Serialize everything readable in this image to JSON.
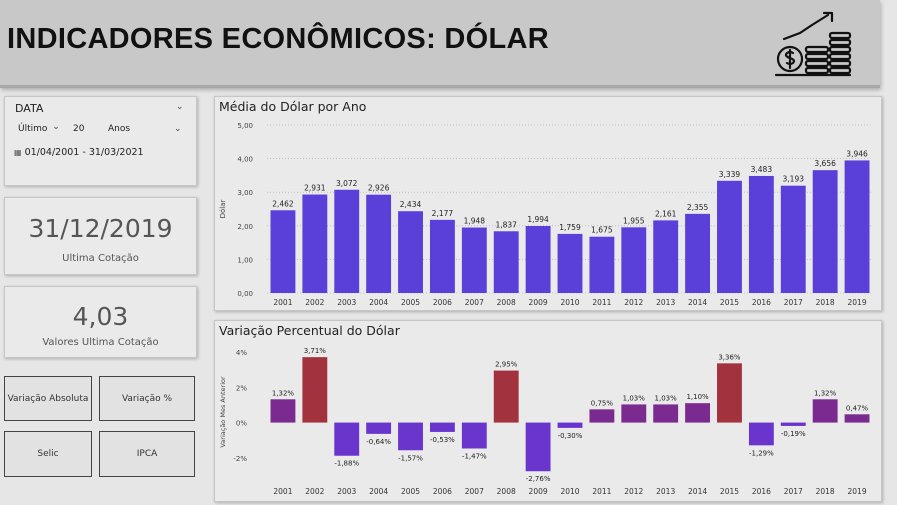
{
  "header": {
    "title": "INDICADORES ECONÔMICOS: DÓLAR",
    "icon": "money-growth-icon"
  },
  "slicer": {
    "title": "DATA",
    "mode": "Último",
    "count": "20",
    "unit": "Anos",
    "range": "01/04/2001 - 31/03/2021",
    "calendar_icon": "calendar-icon"
  },
  "kpi_date": {
    "value": "31/12/2019",
    "label": "Ultima Cotação"
  },
  "kpi_value": {
    "value": "4,03",
    "label": "Valores Ultima Cotação"
  },
  "buttons": {
    "var_abs": "Variação Absoluta",
    "var_pct": "Variação %",
    "selic": "Selic",
    "ipca": "IPCA"
  },
  "colors": {
    "bar": "#5b3fd9",
    "positive_high": "#a3323f",
    "positive": "#7b2a8f",
    "negative": "#6a35cc"
  },
  "chart_data": [
    {
      "type": "bar",
      "title": "Média do Dólar por Ano",
      "ylabel": "Dólar",
      "xlabel": "",
      "ylim": [
        0,
        5
      ],
      "yticks": [
        "0,00",
        "1,00",
        "2,00",
        "3,00",
        "4,00",
        "5,00"
      ],
      "grid": true,
      "categories": [
        "2001",
        "2002",
        "2003",
        "2004",
        "2005",
        "2006",
        "2007",
        "2008",
        "2009",
        "2010",
        "2011",
        "2012",
        "2013",
        "2014",
        "2015",
        "2016",
        "2017",
        "2018",
        "2019"
      ],
      "values": [
        2.462,
        2.931,
        3.072,
        2.926,
        2.434,
        2.177,
        1.948,
        1.837,
        1.994,
        1.759,
        1.675,
        1.955,
        2.161,
        2.355,
        3.339,
        3.483,
        3.193,
        3.656,
        3.946
      ],
      "labels": [
        "2,462",
        "2,931",
        "3,072",
        "2,926",
        "2,434",
        "2,177",
        "1,948",
        "1,837",
        "1,994",
        "1,759",
        "1,675",
        "1,955",
        "2,161",
        "2,355",
        "3,339",
        "3,483",
        "3,193",
        "3,656",
        "3,946"
      ]
    },
    {
      "type": "bar",
      "title": "Variação Percentual do Dólar",
      "ylabel": "Variação Mes Anterior",
      "xlabel": "",
      "ylim": [
        -3.2,
        4.4
      ],
      "yticks": [
        {
          "v": -2,
          "t": "-2%"
        },
        {
          "v": 0,
          "t": "0%"
        },
        {
          "v": 2,
          "t": "2%"
        },
        {
          "v": 4,
          "t": "4%"
        }
      ],
      "categories": [
        "2001",
        "2002",
        "2003",
        "2004",
        "2005",
        "2006",
        "2007",
        "2008",
        "2009",
        "2010",
        "2011",
        "2012",
        "2013",
        "2014",
        "2015",
        "2016",
        "2017",
        "2018",
        "2019"
      ],
      "values": [
        1.32,
        3.71,
        -1.88,
        -0.64,
        -1.57,
        -0.53,
        -1.47,
        2.95,
        -2.76,
        -0.3,
        0.75,
        1.03,
        1.03,
        1.1,
        3.36,
        -1.29,
        -0.19,
        1.32,
        0.47
      ],
      "labels": [
        "1,32%",
        "3,71%",
        "-1,88%",
        "-0,64%",
        "-1,57%",
        "-0,53%",
        "-1,47%",
        "2,95%",
        "-2,76%",
        "-0,30%",
        "0,75%",
        "1,03%",
        "1,03%",
        "1,10%",
        "3,36%",
        "-1,29%",
        "-0,19%",
        "1,32%",
        "0,47%"
      ]
    }
  ]
}
